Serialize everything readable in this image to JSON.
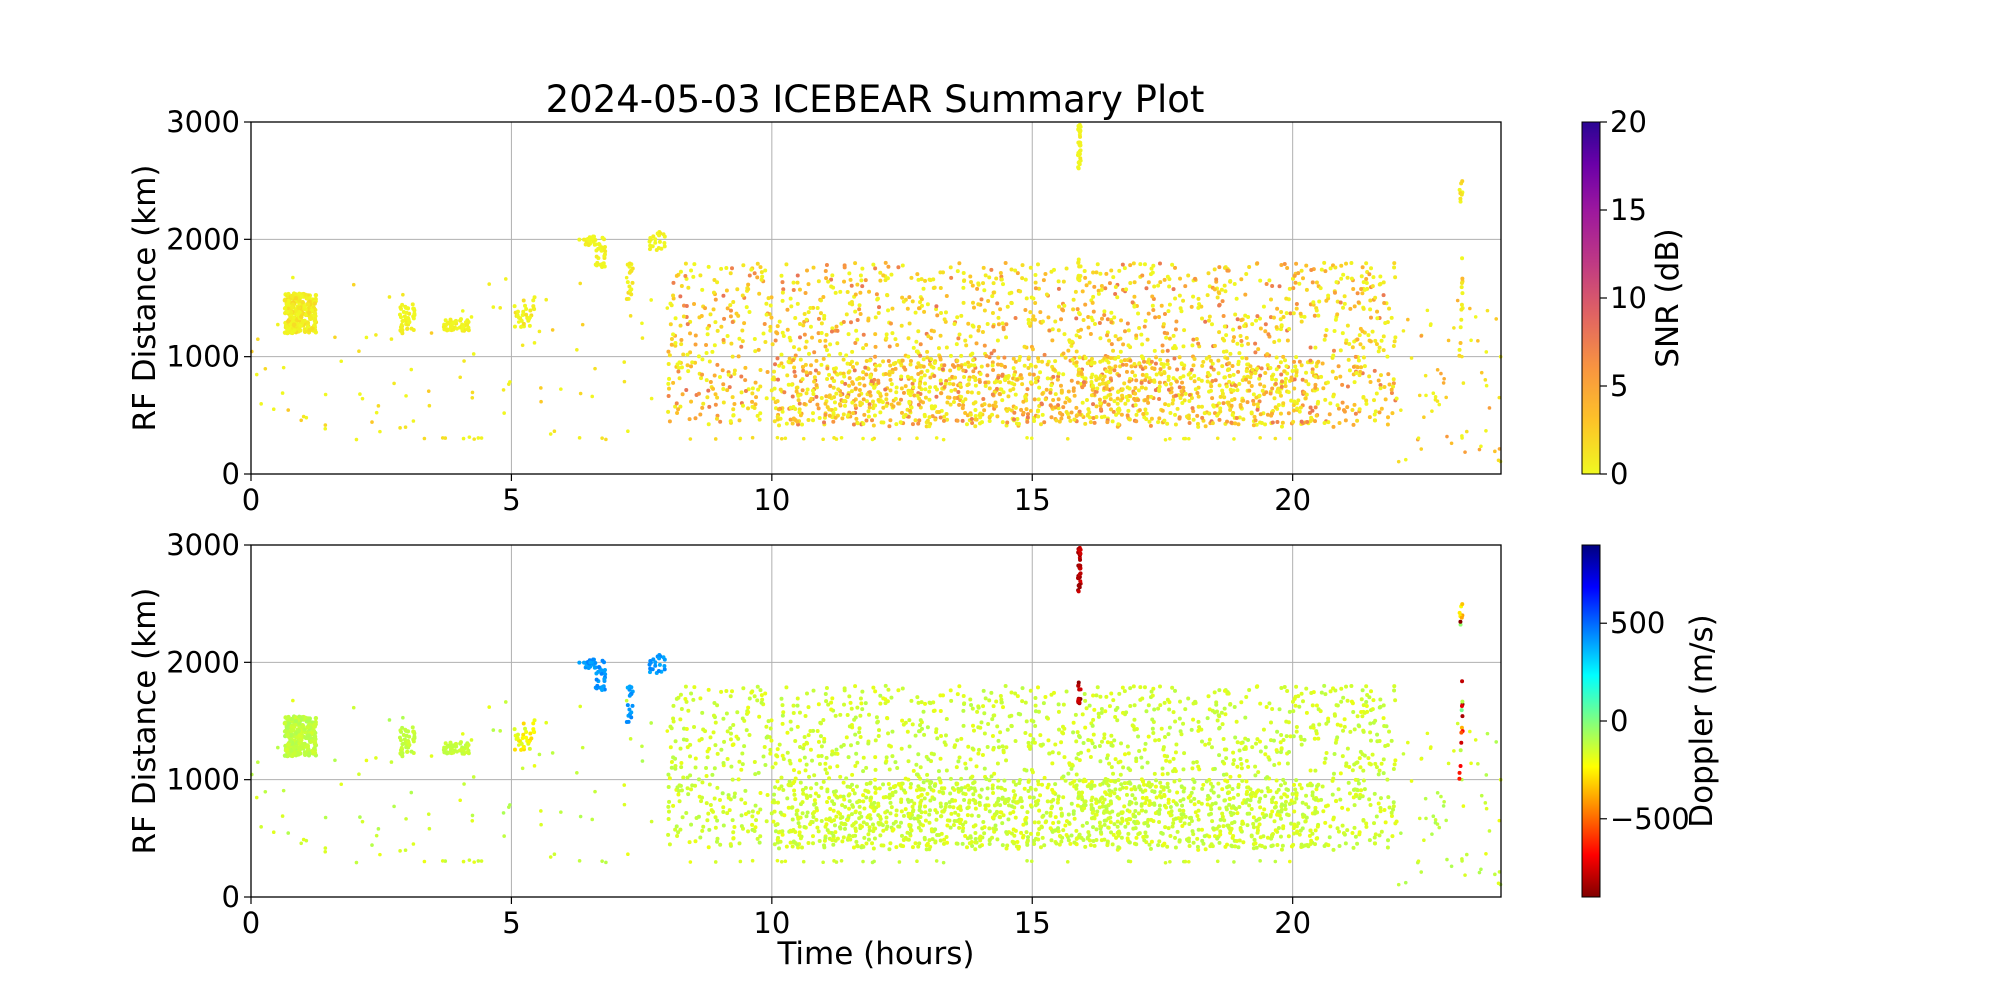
{
  "title": "2024-05-03 ICEBEAR Summary Plot",
  "chart_data": [
    {
      "type": "scatter",
      "name": "snr-panel",
      "xlim": [
        0,
        24
      ],
      "ylim": [
        0,
        3000
      ],
      "xticks": [
        "0",
        "5",
        "10",
        "15",
        "20"
      ],
      "xtick_values": [
        0,
        5,
        10,
        15,
        20
      ],
      "yticks": [
        "0",
        "1000",
        "2000",
        "3000"
      ],
      "ytick_values": [
        0,
        1000,
        2000,
        3000
      ],
      "xlabel": "",
      "ylabel": "RF Distance (km)",
      "grid": true,
      "colorbar": {
        "label": "SNR (dB)",
        "range": [
          0,
          20
        ],
        "ticks": [
          "0",
          "5",
          "10",
          "15",
          "20"
        ],
        "tick_values": [
          0,
          5,
          10,
          15,
          20
        ],
        "colormap": "plasma_r"
      }
    },
    {
      "type": "scatter",
      "name": "doppler-panel",
      "xlim": [
        0,
        24
      ],
      "ylim": [
        0,
        3000
      ],
      "xticks": [
        "0",
        "5",
        "10",
        "15",
        "20"
      ],
      "xtick_values": [
        0,
        5,
        10,
        15,
        20
      ],
      "yticks": [
        "0",
        "1000",
        "2000",
        "3000"
      ],
      "ytick_values": [
        0,
        1000,
        2000,
        3000
      ],
      "xlabel": "Time (hours)",
      "ylabel": "RF Distance (km)",
      "grid": true,
      "colorbar": {
        "label": "Doppler (m/s)",
        "range": [
          -900,
          900
        ],
        "ticks": [
          "500",
          "0",
          "−500"
        ],
        "tick_values": [
          500,
          0,
          -500
        ],
        "colormap": "jet_r"
      }
    }
  ],
  "clusters": [
    {
      "x": [
        0.65,
        1.25
      ],
      "y": [
        1200,
        1540
      ],
      "n": 260,
      "snr": [
        0,
        2
      ],
      "dop": [
        -150,
        -80
      ],
      "r": 2.2
    },
    {
      "x": [
        2.85,
        3.15
      ],
      "y": [
        1180,
        1450
      ],
      "n": 45,
      "snr": [
        0,
        1
      ],
      "dop": [
        -150,
        -100
      ],
      "r": 2
    },
    {
      "x": [
        3.7,
        4.2
      ],
      "y": [
        1220,
        1320
      ],
      "n": 45,
      "snr": [
        0,
        1
      ],
      "dop": [
        -150,
        -100
      ],
      "r": 2
    },
    {
      "x": [
        5.05,
        5.45
      ],
      "y": [
        1250,
        1520
      ],
      "n": 30,
      "snr": [
        0,
        2
      ],
      "dop": [
        -300,
        -150
      ],
      "r": 2
    },
    {
      "x": [
        6.3,
        6.8
      ],
      "y": [
        1950,
        2030
      ],
      "n": 25,
      "snr": [
        0,
        1
      ],
      "dop": [
        380,
        460
      ],
      "r": 2
    },
    {
      "x": [
        6.6,
        6.8
      ],
      "y": [
        1750,
        1960
      ],
      "n": 22,
      "snr": [
        0,
        1
      ],
      "dop": [
        380,
        460
      ],
      "r": 2
    },
    {
      "x": [
        7.2,
        7.35
      ],
      "y": [
        1480,
        1800
      ],
      "n": 18,
      "snr": [
        0,
        2
      ],
      "dop": [
        380,
        460
      ],
      "r": 2
    },
    {
      "x": [
        7.65,
        7.95
      ],
      "y": [
        1900,
        2070
      ],
      "n": 22,
      "snr": [
        0,
        1
      ],
      "dop": [
        380,
        460
      ],
      "r": 2
    },
    {
      "x": [
        15.88,
        15.93
      ],
      "y": [
        2600,
        2980
      ],
      "n": 35,
      "snr": [
        0,
        1
      ],
      "dop": [
        -900,
        -750
      ],
      "r": 2
    },
    {
      "x": [
        15.88,
        15.93
      ],
      "y": [
        1650,
        1850
      ],
      "n": 12,
      "snr": [
        0,
        2
      ],
      "dop": [
        -900,
        -750
      ],
      "r": 2
    },
    {
      "x": [
        23.2,
        23.28
      ],
      "y": [
        2200,
        2620
      ],
      "n": 8,
      "snr": [
        0,
        3
      ],
      "dop": [
        -900,
        200
      ],
      "r": 2
    },
    {
      "x": [
        23.2,
        23.28
      ],
      "y": [
        1000,
        1850
      ],
      "n": 14,
      "snr": [
        0,
        4
      ],
      "dop": [
        -900,
        400
      ],
      "r": 2
    }
  ],
  "scatter_bands": [
    {
      "x": [
        8,
        22
      ],
      "y": [
        400,
        1800
      ],
      "n": 1650,
      "snr": [
        0,
        8
      ],
      "dop": [
        -200,
        -100
      ],
      "r": 2
    },
    {
      "x": [
        10,
        20.5
      ],
      "y": [
        420,
        1000
      ],
      "n": 900,
      "snr": [
        0,
        8
      ],
      "dop": [
        -200,
        -100
      ],
      "r": 2
    },
    {
      "x": [
        0,
        8
      ],
      "y": [
        300,
        1700
      ],
      "n": 90,
      "snr": [
        0,
        3
      ],
      "dop": [
        -200,
        -80
      ],
      "r": 1.8
    },
    {
      "x": [
        22,
        24
      ],
      "y": [
        100,
        1500
      ],
      "n": 60,
      "snr": [
        0,
        6
      ],
      "dop": [
        -200,
        -80
      ],
      "r": 1.8
    },
    {
      "x": [
        1.5,
        20
      ],
      "y": [
        290,
        310
      ],
      "n": 45,
      "snr": [
        0,
        2
      ],
      "dop": [
        -200,
        -100
      ],
      "r": 1.8
    }
  ]
}
